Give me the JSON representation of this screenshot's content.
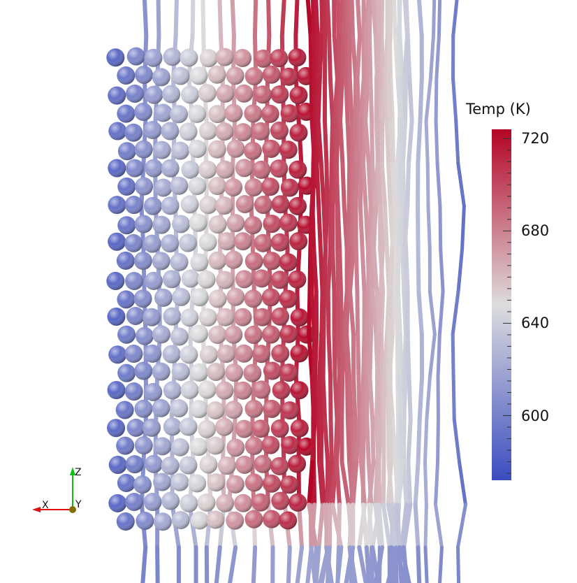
{
  "scalar_bar": {
    "title": "Temp (K)",
    "ticks": [
      {
        "label": "720",
        "value": 720
      },
      {
        "label": "680",
        "value": 680
      },
      {
        "label": "640",
        "value": 640
      },
      {
        "label": "600",
        "value": 600
      }
    ],
    "range_min": 572,
    "range_max": 724,
    "colors": {
      "low": "#3b4cc0",
      "mid": "#dddddd",
      "high": "#b40426"
    }
  },
  "orientation_axes": {
    "x_label": "X",
    "y_label": "Y",
    "z_label": "Z",
    "x_color": "#e01010",
    "y_color": "#807000",
    "z_color": "#10c010"
  },
  "scene": {
    "particle_temp_left": 585,
    "particle_temp_right": 724,
    "streamline_inlet_temp": 600,
    "streamline_outlet_max_temp": 720
  }
}
